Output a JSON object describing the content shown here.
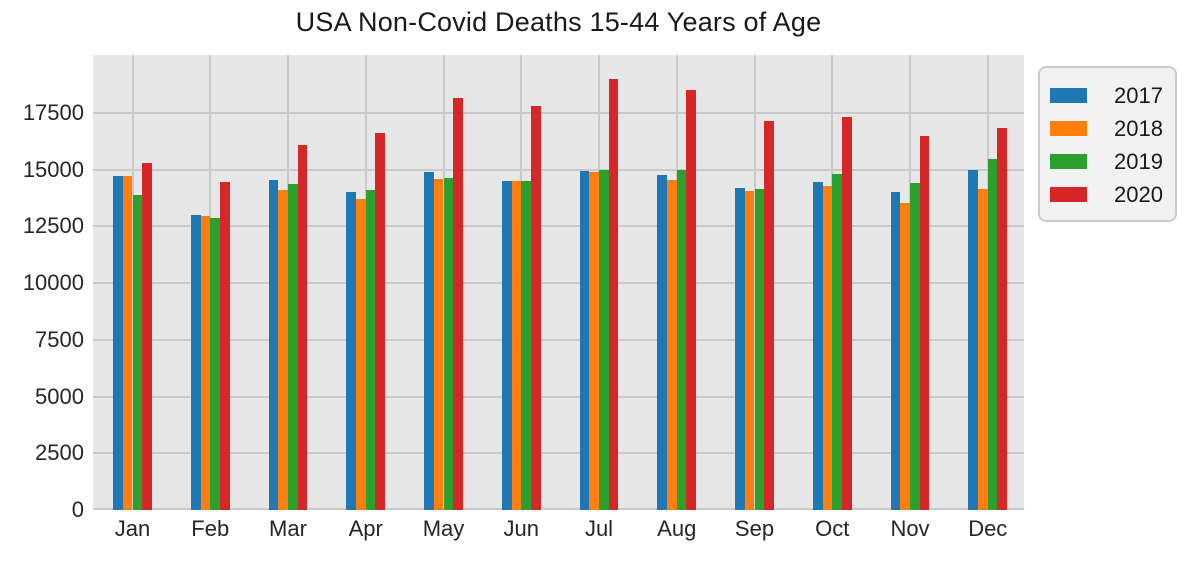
{
  "figure": {
    "title": "USA Non-Covid Deaths 15-44 Years of Age"
  },
  "chart_data": {
    "type": "bar",
    "title": "USA Non-Covid Deaths 15-44 Years of Age",
    "categories": [
      "Jan",
      "Feb",
      "Mar",
      "Apr",
      "May",
      "Jun",
      "Jul",
      "Aug",
      "Sep",
      "Oct",
      "Nov",
      "Dec"
    ],
    "series": [
      {
        "name": "2017",
        "color": "#1f77b4",
        "values": [
          14700,
          13000,
          14550,
          14000,
          14900,
          14500,
          14950,
          14750,
          14200,
          14450,
          14000,
          15000
        ]
      },
      {
        "name": "2018",
        "color": "#ff7f0e",
        "values": [
          14700,
          12950,
          14100,
          13700,
          14600,
          14500,
          14900,
          14550,
          14050,
          14300,
          13550,
          14150
        ]
      },
      {
        "name": "2019",
        "color": "#2ca02c",
        "values": [
          13900,
          12850,
          14350,
          14100,
          14650,
          14500,
          15000,
          15000,
          14150,
          14800,
          14400,
          15450
        ]
      },
      {
        "name": "2020",
        "color": "#d62728",
        "values": [
          15300,
          14450,
          16100,
          16600,
          18150,
          17800,
          19000,
          18500,
          17150,
          17300,
          16500,
          16850
        ]
      }
    ],
    "xlabel": "",
    "ylabel": "",
    "ylim": [
      0,
      20050
    ],
    "yticks": [
      0,
      2500,
      5000,
      7500,
      10000,
      12500,
      15000,
      17500
    ],
    "grid": true,
    "legend": {
      "position": "outside-right-top",
      "entries": [
        "2017",
        "2018",
        "2019",
        "2020"
      ]
    },
    "plot_bg": "#e7e7e7",
    "grid_color": "#c9c9c9"
  }
}
